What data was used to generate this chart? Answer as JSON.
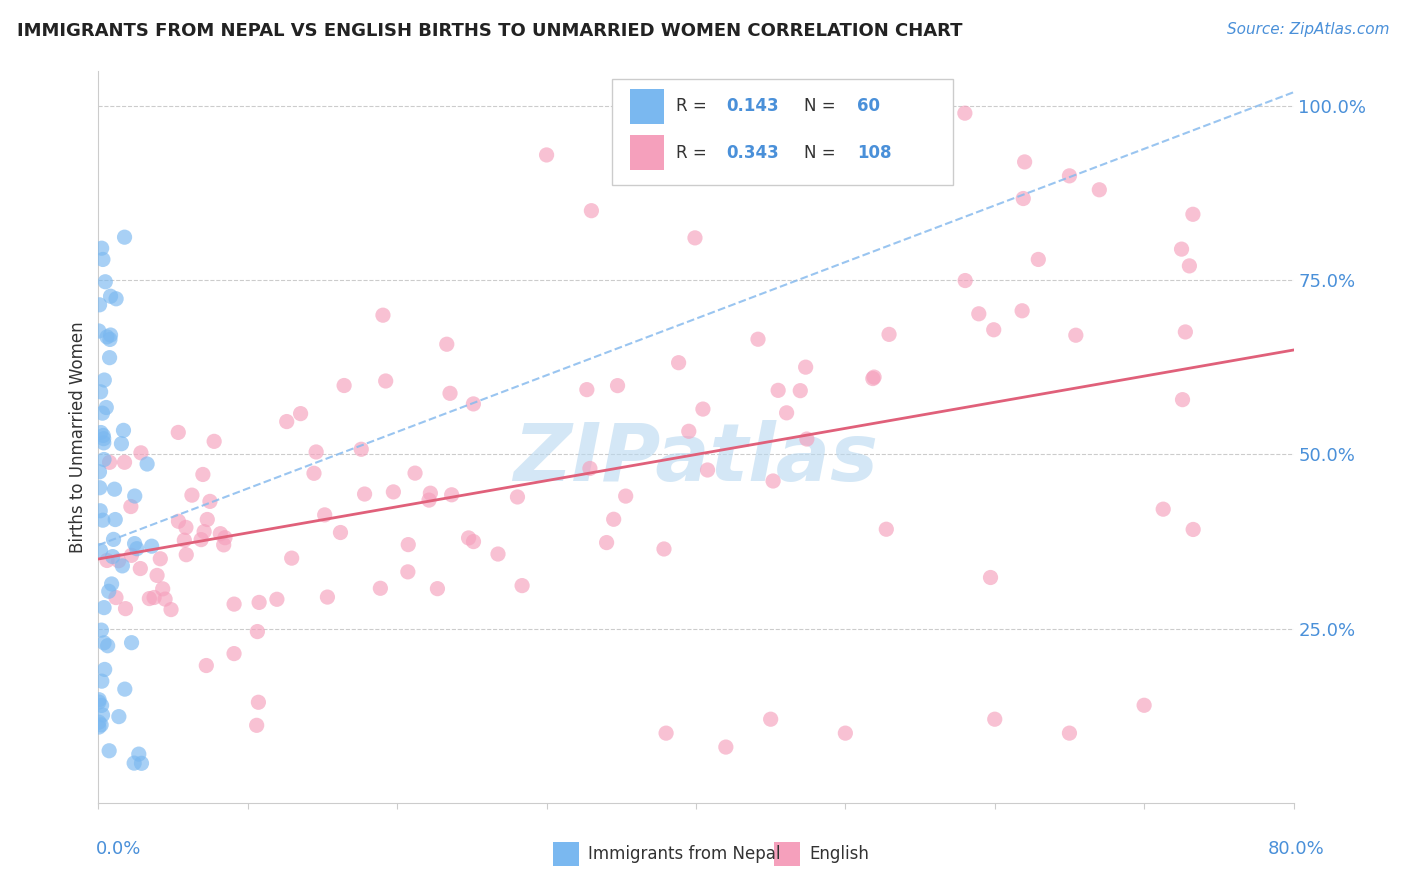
{
  "title": "IMMIGRANTS FROM NEPAL VS ENGLISH BIRTHS TO UNMARRIED WOMEN CORRELATION CHART",
  "source_text": "Source: ZipAtlas.com",
  "ylabel": "Births to Unmarried Women",
  "legend_label_blue": "Immigrants from Nepal",
  "legend_label_pink": "English",
  "watermark": "ZIPatlas",
  "watermark_color": "#b8d8f0",
  "title_color": "#222222",
  "axis_label_color": "#4a90d9",
  "blue_color": "#7ab8f0",
  "pink_color": "#f5a0bc",
  "blue_line_color": "#88bbee",
  "pink_line_color": "#e0607a",
  "xmin": 0.0,
  "xmax": 0.8,
  "ymin": 0.0,
  "ymax": 1.05,
  "blue_R": 0.143,
  "blue_N": 60,
  "pink_R": 0.343,
  "pink_N": 108,
  "grid_color": "#cccccc",
  "ytick_positions": [
    0.25,
    0.5,
    0.75,
    1.0
  ],
  "ytick_labels": [
    "25.0%",
    "50.0%",
    "75.0%",
    "100.0%"
  ]
}
